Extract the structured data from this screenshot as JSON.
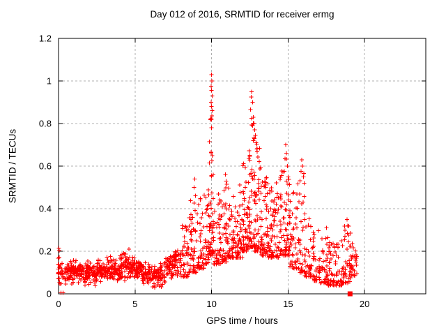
{
  "colors": {
    "background": "#ffffff",
    "axis": "#000000",
    "grid": "#b0b0b0",
    "marker": "#ff0000"
  },
  "chart_data": {
    "type": "scatter",
    "title": "Day 012 of 2016, SRMTID for receiver ermg",
    "xlabel": "GPS time / hours",
    "ylabel": "SRMTID / TECUs",
    "xlim": [
      0,
      24
    ],
    "ylim": [
      0,
      1.2
    ],
    "xticks": {
      "values": [
        0,
        5,
        10,
        15,
        20
      ],
      "labels": [
        "0",
        "5",
        "10",
        "15",
        "20"
      ]
    },
    "yticks": {
      "values": [
        0,
        0.2,
        0.4,
        0.6,
        0.8,
        1,
        1.2
      ],
      "labels": [
        "0",
        "0.2",
        "0.4",
        "0.6",
        "0.8",
        "1",
        "1.2"
      ]
    },
    "grid": {
      "show": true,
      "style": "dashed",
      "color": "#b0b0b0"
    },
    "marker": {
      "shape": "plus",
      "color": "#ff0000",
      "size": 7
    },
    "description": "Dense scatter of red plus markers: baseline band ~0.05-0.2 TECUs from 0-8 h, rising activity 8-9.5 h, sharp spike to ~1.03 at 10.0 h, broad active period 11-16 h with peaks ~0.95 at 12.6 h, ~0.70 at 14.9 h, ~0.63 at 15.9 h, decline to ~0.1-0.25 band until data ends near 19.5 h; single filled-square point at (19.05, 0).",
    "scatter_model": {
      "seed": 20160112,
      "tail_exponent": 2.4,
      "bins": [
        [
          -0.03,
          0.06,
          14,
          0.04,
          0.22,
          "band"
        ],
        [
          0.06,
          0.5,
          26,
          0.03,
          0.16,
          "band"
        ],
        [
          0.5,
          1.0,
          50,
          0.04,
          0.17,
          "band"
        ],
        [
          1.0,
          1.5,
          48,
          0.05,
          0.16,
          "band"
        ],
        [
          1.5,
          2.0,
          48,
          0.04,
          0.16,
          "band"
        ],
        [
          2.0,
          2.5,
          45,
          0.03,
          0.15,
          "band"
        ],
        [
          2.5,
          3.0,
          48,
          0.05,
          0.17,
          "band"
        ],
        [
          3.0,
          3.5,
          50,
          0.05,
          0.19,
          "band"
        ],
        [
          3.5,
          4.0,
          48,
          0.05,
          0.17,
          "band"
        ],
        [
          4.0,
          4.5,
          50,
          0.06,
          0.2,
          "band"
        ],
        [
          4.5,
          5.0,
          48,
          0.06,
          0.19,
          "band"
        ],
        [
          5.0,
          5.5,
          48,
          0.05,
          0.18,
          "band"
        ],
        [
          5.5,
          6.0,
          45,
          0.04,
          0.16,
          "band"
        ],
        [
          6.0,
          6.5,
          40,
          0.02,
          0.14,
          "band"
        ],
        [
          6.5,
          7.0,
          42,
          0.03,
          0.16,
          "band"
        ],
        [
          7.0,
          7.5,
          46,
          0.06,
          0.19,
          "band"
        ],
        [
          7.5,
          8.0,
          46,
          0.07,
          0.23,
          "band"
        ],
        [
          8.0,
          8.5,
          46,
          0.08,
          0.32,
          "tail"
        ],
        [
          8.5,
          9.0,
          48,
          0.1,
          0.52,
          "tail"
        ],
        [
          9.0,
          9.5,
          45,
          0.12,
          0.46,
          "tail"
        ],
        [
          9.5,
          9.85,
          35,
          0.14,
          0.5,
          "tail"
        ],
        [
          9.85,
          10.15,
          55,
          0.18,
          0.85,
          "tail"
        ],
        [
          10.15,
          10.6,
          42,
          0.14,
          0.5,
          "tail"
        ],
        [
          10.6,
          11.0,
          42,
          0.15,
          0.56,
          "tail"
        ],
        [
          11.0,
          11.5,
          50,
          0.17,
          0.5,
          "tail"
        ],
        [
          11.5,
          12.0,
          50,
          0.17,
          0.52,
          "tail"
        ],
        [
          12.0,
          12.4,
          50,
          0.2,
          0.62,
          "tail"
        ],
        [
          12.4,
          12.8,
          60,
          0.22,
          0.88,
          "tail"
        ],
        [
          12.8,
          13.2,
          55,
          0.2,
          0.75,
          "tail"
        ],
        [
          13.2,
          13.7,
          55,
          0.18,
          0.55,
          "tail"
        ],
        [
          13.7,
          14.2,
          52,
          0.17,
          0.5,
          "tail"
        ],
        [
          14.2,
          14.7,
          48,
          0.17,
          0.58,
          "tail"
        ],
        [
          14.7,
          15.1,
          48,
          0.18,
          0.66,
          "tail"
        ],
        [
          15.1,
          15.6,
          45,
          0.12,
          0.5,
          "tail"
        ],
        [
          15.6,
          16.1,
          42,
          0.1,
          0.6,
          "tail"
        ],
        [
          16.1,
          16.6,
          40,
          0.08,
          0.36,
          "tail"
        ],
        [
          16.6,
          17.1,
          38,
          0.06,
          0.3,
          "tail"
        ],
        [
          17.1,
          17.6,
          38,
          0.05,
          0.28,
          "tail"
        ],
        [
          17.6,
          18.1,
          38,
          0.04,
          0.26,
          "tail"
        ],
        [
          18.1,
          18.6,
          38,
          0.04,
          0.28,
          "tail"
        ],
        [
          18.6,
          19.1,
          40,
          0.05,
          0.33,
          "tail"
        ],
        [
          19.1,
          19.5,
          30,
          0.05,
          0.24,
          "band"
        ]
      ],
      "notable_points": [
        [
          0.02,
          0.215
        ],
        [
          0.15,
          0.005
        ],
        [
          0.3,
          0.005
        ],
        [
          4.6,
          0.21
        ],
        [
          8.9,
          0.54
        ],
        [
          8.85,
          0.5
        ],
        [
          8.95,
          0.46
        ],
        [
          10.0,
          1.03
        ],
        [
          10.02,
          1.0
        ],
        [
          9.98,
          0.975
        ],
        [
          10.0,
          0.955
        ],
        [
          10.04,
          0.93
        ],
        [
          9.97,
          0.9
        ],
        [
          10.0,
          0.88
        ],
        [
          10.05,
          0.86
        ],
        [
          9.99,
          0.82
        ],
        [
          10.0,
          0.78
        ],
        [
          10.9,
          0.56
        ],
        [
          10.95,
          0.53
        ],
        [
          12.62,
          0.95
        ],
        [
          12.6,
          0.925
        ],
        [
          12.68,
          0.9
        ],
        [
          12.55,
          0.865
        ],
        [
          12.72,
          0.83
        ],
        [
          12.78,
          0.8
        ],
        [
          12.82,
          0.77
        ],
        [
          12.86,
          0.745
        ],
        [
          12.9,
          0.71
        ],
        [
          12.95,
          0.68
        ],
        [
          12.5,
          0.65
        ],
        [
          14.85,
          0.7
        ],
        [
          14.9,
          0.66
        ],
        [
          14.8,
          0.635
        ],
        [
          14.95,
          0.6
        ],
        [
          14.75,
          0.575
        ],
        [
          15.0,
          0.55
        ],
        [
          15.9,
          0.63
        ],
        [
          15.95,
          0.6
        ],
        [
          15.85,
          0.575
        ],
        [
          16.0,
          0.55
        ],
        [
          16.05,
          0.52
        ],
        [
          17.5,
          0.31
        ],
        [
          18.85,
          0.35
        ],
        [
          18.9,
          0.32
        ]
      ],
      "special_points": [
        {
          "x": 19.05,
          "y": 0,
          "marker": "filled-square",
          "size": 7
        }
      ]
    }
  }
}
